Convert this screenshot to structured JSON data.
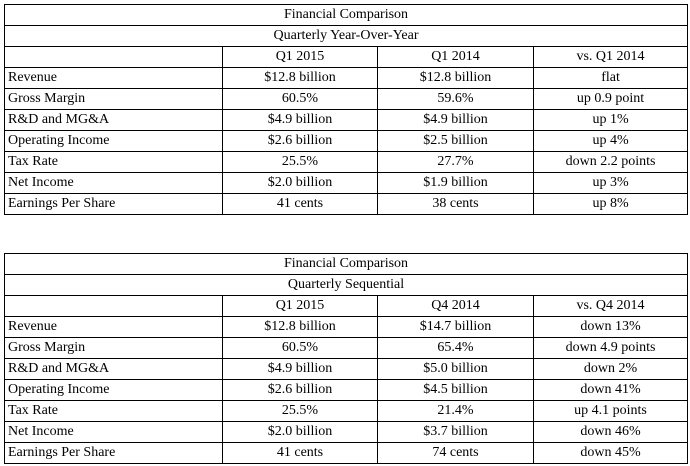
{
  "tables": [
    {
      "title": "Financial Comparison",
      "subtitle": "Quarterly Year-Over-Year",
      "headers": [
        "",
        "Q1 2015",
        "Q1 2014",
        "vs. Q1 2014"
      ],
      "rows": [
        [
          "Revenue",
          "$12.8 billion",
          "$12.8 billion",
          "flat"
        ],
        [
          "Gross Margin",
          "60.5%",
          "59.6%",
          "up 0.9 point"
        ],
        [
          "R&D and MG&A",
          "$4.9 billion",
          "$4.9 billion",
          "up 1%"
        ],
        [
          "Operating Income",
          "$2.6 billion",
          "$2.5 billion",
          "up 4%"
        ],
        [
          "Tax Rate",
          "25.5%",
          "27.7%",
          "down 2.2 points"
        ],
        [
          "Net Income",
          "$2.0 billion",
          "$1.9 billion",
          "up 3%"
        ],
        [
          "Earnings Per Share",
          "41 cents",
          "38 cents",
          "up 8%"
        ]
      ]
    },
    {
      "title": "Financial Comparison",
      "subtitle": "Quarterly Sequential",
      "headers": [
        "",
        "Q1 2015",
        "Q4 2014",
        "vs. Q4 2014"
      ],
      "rows": [
        [
          "Revenue",
          "$12.8 billion",
          "$14.7 billion",
          "down 13%"
        ],
        [
          "Gross Margin",
          "60.5%",
          "65.4%",
          "down 4.9 points"
        ],
        [
          "R&D and MG&A",
          "$4.9 billion",
          "$5.0 billion",
          "down 2%"
        ],
        [
          "Operating Income",
          "$2.6 billion",
          "$4.5 billion",
          "down 41%"
        ],
        [
          "Tax Rate",
          "25.5%",
          "21.4%",
          "up 4.1 points"
        ],
        [
          "Net Income",
          "$2.0 billion",
          "$3.7 billion",
          "down 46%"
        ],
        [
          "Earnings Per Share",
          "41 cents",
          "74 cents",
          "down 45%"
        ]
      ]
    }
  ]
}
